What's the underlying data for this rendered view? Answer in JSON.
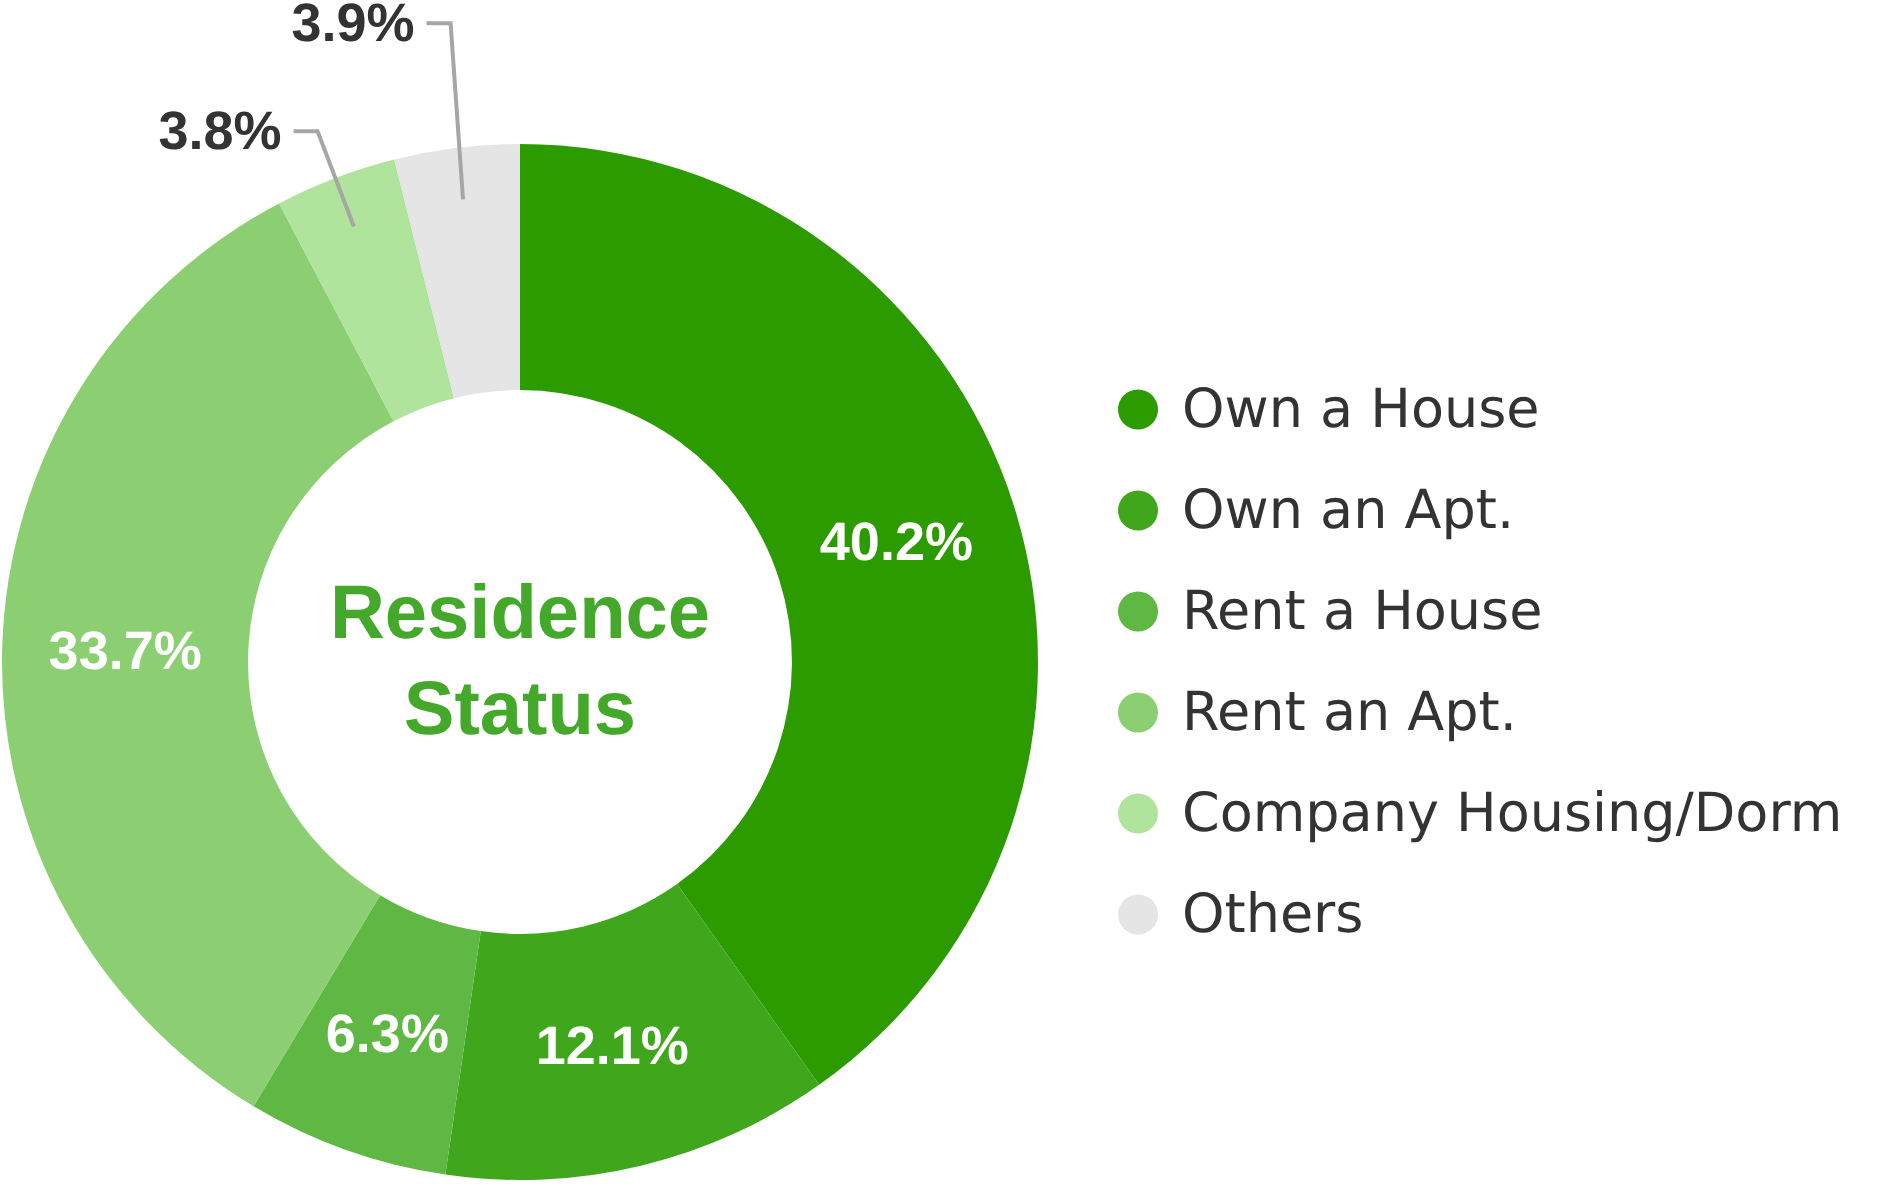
{
  "chart_data": {
    "type": "donut",
    "title": "Residence Status",
    "categories": [
      "Own a House",
      "Own an Apt.",
      "Rent a House",
      "Rent an Apt.",
      "Company Housing/Dorm",
      "Others"
    ],
    "values": [
      40.2,
      12.1,
      6.3,
      33.7,
      3.8,
      3.9
    ],
    "colors": [
      "#2c9b00",
      "#40a61c",
      "#5fb843",
      "#8bcf72",
      "#b0e39b",
      "#e5e5e5"
    ],
    "value_labels": [
      "40.2%",
      "12.1%",
      "6.3%",
      "33.7%",
      "3.8%",
      "3.9%"
    ],
    "legend": "right"
  }
}
